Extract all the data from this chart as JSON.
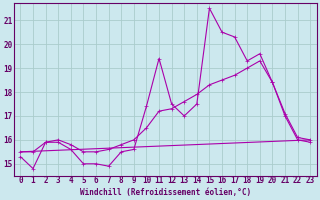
{
  "xlabel": "Windchill (Refroidissement éolien,°C)",
  "bg_color": "#cce8ee",
  "line_color": "#aa00aa",
  "grid_color": "#aacccc",
  "axis_color": "#660066",
  "text_color": "#660066",
  "xlim": [
    -0.5,
    23.5
  ],
  "ylim": [
    14.5,
    21.7
  ],
  "yticks": [
    15,
    16,
    17,
    18,
    19,
    20,
    21
  ],
  "xticks": [
    0,
    1,
    2,
    3,
    4,
    5,
    6,
    7,
    8,
    9,
    10,
    11,
    12,
    13,
    14,
    15,
    16,
    17,
    18,
    19,
    20,
    21,
    22,
    23
  ],
  "series1_x": [
    0,
    1,
    2,
    3,
    4,
    5,
    6,
    7,
    8,
    9,
    10,
    11,
    12,
    13,
    14,
    15,
    16,
    17,
    18,
    19,
    20,
    21,
    22,
    23
  ],
  "series1_y": [
    15.3,
    14.8,
    15.9,
    15.9,
    15.6,
    15.0,
    15.0,
    14.9,
    15.5,
    15.6,
    17.4,
    19.4,
    17.5,
    17.0,
    17.5,
    21.5,
    20.5,
    20.3,
    19.3,
    19.6,
    18.4,
    17.0,
    16.0,
    15.9
  ],
  "series2_x": [
    0,
    1,
    2,
    3,
    4,
    5,
    6,
    7,
    8,
    9,
    10,
    11,
    12,
    13,
    14,
    15,
    16,
    17,
    18,
    19,
    20,
    21,
    22,
    23
  ],
  "series2_y": [
    15.5,
    15.5,
    15.9,
    16.0,
    15.8,
    15.5,
    15.5,
    15.6,
    15.8,
    16.0,
    16.5,
    17.2,
    17.3,
    17.6,
    17.9,
    18.3,
    18.5,
    18.7,
    19.0,
    19.3,
    18.4,
    17.1,
    16.1,
    16.0
  ],
  "series3_x": [
    0,
    23
  ],
  "series3_y": [
    15.5,
    16.0
  ]
}
